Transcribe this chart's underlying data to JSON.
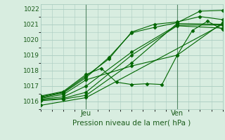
{
  "xlabel": "Pression niveau de la mer( hPa )",
  "ylim": [
    1015.5,
    1022.3
  ],
  "xlim": [
    0,
    48
  ],
  "yticks": [
    1016,
    1017,
    1018,
    1019,
    1020,
    1021,
    1022
  ],
  "xtick_positions": [
    12,
    36
  ],
  "xtick_labels": [
    "Jeu",
    "Ven"
  ],
  "vlines": [
    12,
    36
  ],
  "bg_color": "#d8ede0",
  "grid_color": "#aaccc0",
  "line_color": "#006600",
  "marker": "D",
  "marker_size": 2.5,
  "series": [
    [
      0,
      1015.75,
      12,
      1016.25,
      48,
      1021.0
    ],
    [
      0,
      1016.05,
      6,
      1016.15,
      12,
      1016.4,
      24,
      1018.5,
      36,
      1021.05,
      48,
      1021.0
    ],
    [
      0,
      1016.1,
      6,
      1016.2,
      12,
      1016.6,
      24,
      1019.0,
      36,
      1020.9,
      48,
      1020.75
    ],
    [
      0,
      1016.15,
      6,
      1016.3,
      12,
      1017.0,
      24,
      1019.2,
      36,
      1020.95,
      48,
      1020.95
    ],
    [
      0,
      1016.2,
      6,
      1016.45,
      12,
      1017.4,
      24,
      1018.3,
      36,
      1019.0,
      48,
      1021.1
    ],
    [
      0,
      1016.25,
      6,
      1016.55,
      12,
      1017.55,
      18,
      1018.85,
      24,
      1020.45,
      30,
      1020.8,
      36,
      1021.1,
      42,
      1021.85,
      48,
      1021.9
    ],
    [
      0,
      1016.3,
      6,
      1016.6,
      12,
      1017.65,
      18,
      1018.75,
      24,
      1020.5,
      30,
      1021.0,
      36,
      1021.15,
      42,
      1021.5,
      48,
      1021.3
    ],
    [
      0,
      1016.35,
      6,
      1016.65,
      12,
      1017.75,
      16,
      1018.15,
      20,
      1017.25,
      24,
      1017.1,
      28,
      1017.15,
      32,
      1017.1,
      36,
      1019.0,
      40,
      1020.6,
      44,
      1021.2,
      48,
      1020.65
    ]
  ]
}
